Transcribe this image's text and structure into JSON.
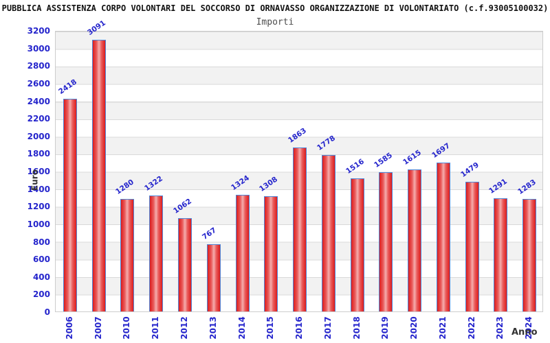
{
  "header": {
    "title": "PUBBLICA ASSISTENZA CORPO VOLONTARI DEL SOCCORSO DI ORNAVASSO ORGANIZZAZIONE DI VOLONTARIATO (c.f.93005100032)",
    "subtitle": "Importi"
  },
  "chart_data": {
    "type": "bar",
    "title": "Importi",
    "xlabel": "Anno",
    "ylabel": "Euro",
    "categories": [
      "2006",
      "2007",
      "2010",
      "2011",
      "2012",
      "2013",
      "2014",
      "2015",
      "2016",
      "2017",
      "2018",
      "2019",
      "2020",
      "2021",
      "2022",
      "2023",
      "2024"
    ],
    "values": [
      2418,
      3091,
      1280,
      1322,
      1062,
      767,
      1324,
      1308,
      1863,
      1778,
      1516,
      1585,
      1615,
      1697,
      1479,
      1291,
      1283
    ],
    "ylim": [
      0,
      3200
    ],
    "ytick_step": 200,
    "grid": true,
    "legend_position": "none",
    "colors": {
      "bar_edge": "#dd1c1c",
      "bar_mid": "#f5adad",
      "bar_border": "#4d86d8",
      "tick_label": "#2525cc",
      "value_label": "#2525cc",
      "axis_title": "#333333",
      "band_gray": "#f2f2f2",
      "band_white": "#ffffff",
      "gridline": "#d9d9d9",
      "frame": "#cccccc",
      "title_color": "#111111",
      "subtitle_color": "#4d4d4d"
    }
  }
}
